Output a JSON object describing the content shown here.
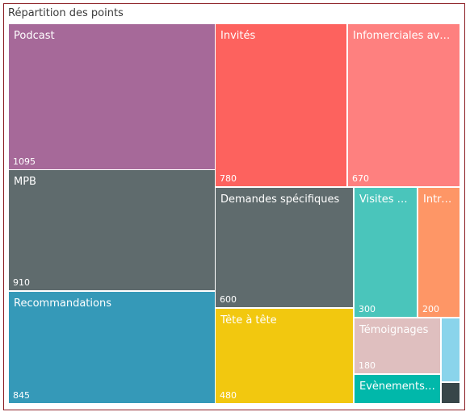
{
  "chart_data": {
    "type": "treemap",
    "title": "Répartition des points",
    "items": [
      {
        "label": "Podcast",
        "value": 1095,
        "display_value": "1095",
        "color": "#a66999"
      },
      {
        "label": "MPB",
        "value": 910,
        "display_value": "910",
        "color": "#5f6b6d"
      },
      {
        "label": "Recommandations",
        "value": 845,
        "display_value": "845",
        "color": "#3599b8"
      },
      {
        "label": "Invités",
        "value": 780,
        "display_value": "780",
        "color": "#fd625e"
      },
      {
        "label": "Infomerciales avec ...",
        "value": 670,
        "display_value": "670",
        "color": "#fe807f"
      },
      {
        "label": "Demandes spécifiques",
        "value": 600,
        "display_value": "600",
        "color": "#5f6b6d"
      },
      {
        "label": "Tête à tête",
        "value": 480,
        "display_value": "480",
        "color": "#f2c80f"
      },
      {
        "label": "Visites au...",
        "value": 300,
        "display_value": "300",
        "color": "#4ac5bb"
      },
      {
        "label": "Intro...",
        "value": 200,
        "display_value": "200",
        "color": "#fe9666"
      },
      {
        "label": "Témoignages",
        "value": 180,
        "display_value": "180",
        "color": "#dfbfbf"
      },
      {
        "label": "Evènements d...",
        "value": 100,
        "display_value": "",
        "color": "#01b8aa"
      },
      {
        "label": "",
        "value": 60,
        "display_value": "",
        "color": "#8ad4eb"
      },
      {
        "label": "",
        "value": 40,
        "display_value": "",
        "color": "#374649"
      }
    ]
  }
}
